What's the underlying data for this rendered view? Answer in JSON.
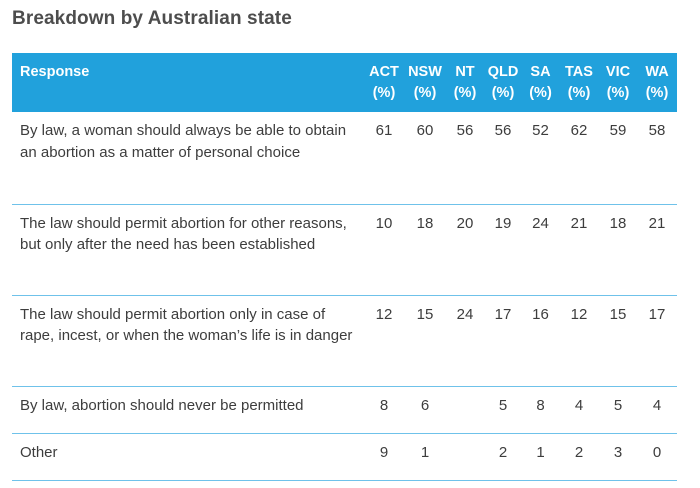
{
  "page": {
    "title": "Breakdown by Australian state"
  },
  "table": {
    "headers": {
      "response": "Response",
      "states": [
        {
          "name": "ACT",
          "unit": "(%)"
        },
        {
          "name": "NSW",
          "unit": "(%)"
        },
        {
          "name": "NT",
          "unit": "(%)"
        },
        {
          "name": "QLD",
          "unit": "(%)"
        },
        {
          "name": "SA",
          "unit": "(%)"
        },
        {
          "name": "TAS",
          "unit": "(%)"
        },
        {
          "name": "VIC",
          "unit": "(%)"
        },
        {
          "name": "WA",
          "unit": "(%)"
        }
      ]
    },
    "rows": [
      {
        "response": "By law, a woman should always be able to obtain an abortion as a matter of personal choice",
        "values": [
          "61",
          "60",
          "56",
          "56",
          "52",
          "62",
          "59",
          "58"
        ]
      },
      {
        "response": "The law should permit abortion for other reasons, but only after the need has been established",
        "values": [
          "10",
          "18",
          "20",
          "19",
          "24",
          "21",
          "18",
          "21"
        ]
      },
      {
        "response": "The law should permit abortion only in case of rape, incest, or when the woman’s life is in danger",
        "values": [
          "12",
          "15",
          "24",
          "17",
          "16",
          "12",
          "15",
          "17"
        ]
      },
      {
        "response": "By law, abortion should never be permitted",
        "values": [
          "8",
          "6",
          "",
          "5",
          "8",
          "4",
          "5",
          "4"
        ]
      },
      {
        "response": "Other",
        "values": [
          "9",
          "1",
          "",
          "2",
          "1",
          "2",
          "3",
          "0"
        ]
      }
    ]
  },
  "colors": {
    "header_bg": "#21a1dc",
    "row_divider": "#6fc2ea",
    "title_text": "#4d4d4d"
  }
}
